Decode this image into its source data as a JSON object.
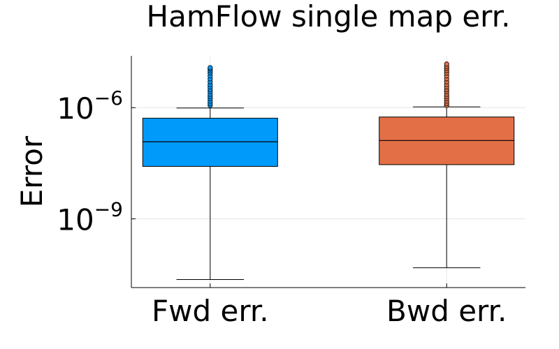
{
  "chart_data": {
    "type": "box",
    "title": "HamFlow single map err.",
    "xlabel": "",
    "ylabel": "Error",
    "yscale": "log10",
    "ylim": [
      1.4e-11,
      2.5e-05
    ],
    "y_ticks": [
      {
        "value": 1e-09,
        "base": "10",
        "exponent": "−9"
      },
      {
        "value": 1e-06,
        "base": "10",
        "exponent": "−6"
      }
    ],
    "grid": true,
    "legend": "none",
    "categories": [
      "Fwd err.",
      "Bwd err."
    ],
    "series": [
      {
        "category": "Fwd err.",
        "color": "#009AFA",
        "whisker_low": 2.3e-11,
        "q1": 2.6e-08,
        "median": 1.2e-07,
        "q3": 5.2e-07,
        "whisker_high": 9.8e-07,
        "outliers": [
          1.15e-06,
          1.3e-06,
          1.5e-06,
          1.75e-06,
          2e-06,
          2.3e-06,
          2.7e-06,
          3.1e-06,
          3.6e-06,
          4.2e-06,
          5e-06,
          6e-06,
          7.2e-06,
          8.6e-06,
          9.8e-06,
          1.1e-05,
          1.2e-05
        ]
      },
      {
        "category": "Bwd err.",
        "color": "#E36F47",
        "whisker_low": 4.8e-11,
        "q1": 2.9e-08,
        "median": 1.3e-07,
        "q3": 5.6e-07,
        "whisker_high": 1.05e-06,
        "outliers": [
          1.15e-06,
          1.3e-06,
          1.5e-06,
          1.75e-06,
          2e-06,
          2.3e-06,
          2.7e-06,
          3.1e-06,
          3.6e-06,
          4.2e-06,
          5e-06,
          6e-06,
          7.2e-06,
          8.6e-06,
          1e-05,
          1.15e-05,
          1.3e-05,
          1.5e-05
        ]
      }
    ]
  }
}
